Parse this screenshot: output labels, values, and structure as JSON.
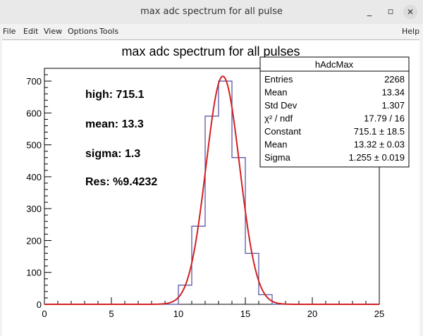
{
  "window": {
    "title": "max adc spectrum for all pulse",
    "minimize_label": "_",
    "maximize_label": "▫",
    "close_label": "✕"
  },
  "menu": {
    "file": "File",
    "edit": "Edit",
    "view": "View",
    "options": "Options",
    "tools": "Tools",
    "help": "Help"
  },
  "annotations": {
    "high": "high: 715.1",
    "mean": "mean: 13.3",
    "sigma": "sigma:  1.3",
    "res": "Res: %9.4232"
  },
  "stats": {
    "name": "hAdcMax",
    "rows": [
      {
        "label": "Entries",
        "value": "2268"
      },
      {
        "label": "Mean",
        "value": "13.34"
      },
      {
        "label": "Std Dev",
        "value": "1.307"
      },
      {
        "label": "χ² / ndf",
        "value": "17.79 / 16"
      },
      {
        "label": "Constant",
        "value": "715.1 ± 18.5"
      },
      {
        "label": "Mean",
        "value": "13.32 ± 0.03"
      },
      {
        "label": "Sigma",
        "value": "1.255 ± 0.019"
      }
    ]
  },
  "colors": {
    "histogram": "#4a4a9c",
    "fit": "#d42020",
    "axis": "#000000"
  },
  "chart_data": {
    "type": "bar",
    "title": "max adc spectrum for all pulses",
    "xlabel": "",
    "ylabel": "",
    "xlim": [
      0,
      25
    ],
    "ylim": [
      0,
      740
    ],
    "x_ticks": [
      0,
      5,
      10,
      15,
      20,
      25
    ],
    "y_ticks": [
      0,
      100,
      200,
      300,
      400,
      500,
      600,
      700
    ],
    "bin_width": 1,
    "bins": [
      {
        "x0": 10,
        "value": 60
      },
      {
        "x0": 11,
        "value": 245
      },
      {
        "x0": 12,
        "value": 590
      },
      {
        "x0": 13,
        "value": 700
      },
      {
        "x0": 14,
        "value": 460
      },
      {
        "x0": 15,
        "value": 160
      },
      {
        "x0": 16,
        "value": 30
      }
    ],
    "fit": {
      "function": "gaus",
      "constant": 715.1,
      "mean": 13.32,
      "sigma": 1.255
    },
    "grid": false,
    "legend": "top-right"
  }
}
